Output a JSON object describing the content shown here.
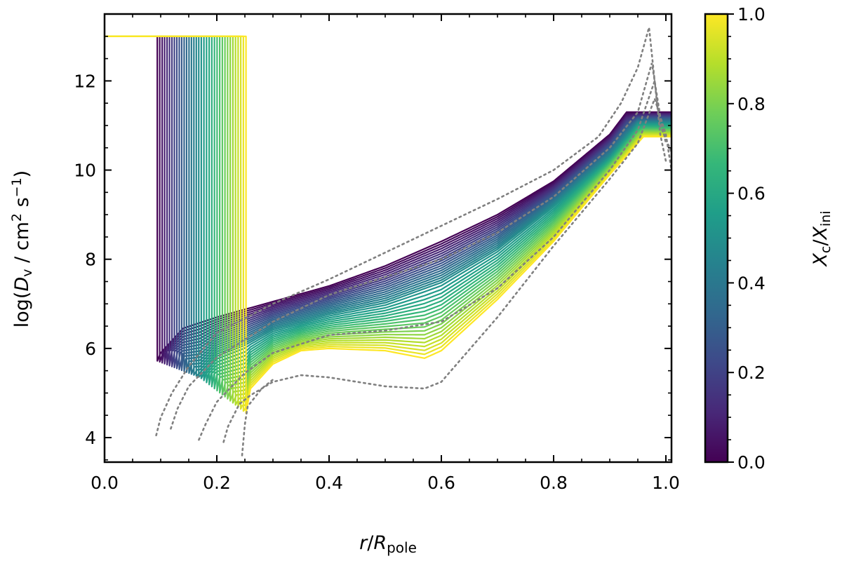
{
  "chart_data": {
    "type": "line",
    "xlabel": {
      "var": "r",
      "sep": "/",
      "var2": "R",
      "sub": "pole"
    },
    "ylabel": {
      "pre": "log(",
      "var": "D",
      "sub": "v",
      "mid": " / cm",
      "sup1": "2",
      "mid2": " s",
      "sup2": "−1",
      "post": ")"
    },
    "colorbar_label": {
      "var": "X",
      "sub": "c",
      "sep": "/",
      "var2": "X",
      "sub2": "ini"
    },
    "xlim": [
      0.0,
      1.01
    ],
    "ylim": [
      3.45,
      13.5
    ],
    "x_ticks": [
      "0.0",
      "0.2",
      "0.4",
      "0.6",
      "0.8",
      "1.0"
    ],
    "x_tick_values": [
      0.0,
      0.2,
      0.4,
      0.6,
      0.8,
      1.0
    ],
    "y_ticks": [
      "4",
      "6",
      "8",
      "10",
      "12"
    ],
    "y_tick_values": [
      4,
      6,
      8,
      10,
      12
    ],
    "colorbar_ticks": [
      "0.0",
      "0.2",
      "0.4",
      "0.6",
      "0.8",
      "1.0"
    ],
    "colorbar_tick_values": [
      0.0,
      0.2,
      0.4,
      0.6,
      0.8,
      1.0
    ],
    "colormap": "viridis",
    "colormap_stops": [
      "#440154",
      "#482878",
      "#3e4989",
      "#31688e",
      "#26828e",
      "#1f9e89",
      "#35b779",
      "#6ece58",
      "#b5de2b",
      "#fde725"
    ],
    "colorbar_range": [
      0.0,
      1.0
    ],
    "grid": false,
    "solid_series_count": 36,
    "solid_series_style": "colored by Xc/Xini, core boundary from r=0.094 (Xc/Xini=0) to r=0.252 (Xc/Xini=1)",
    "solid_series_examples": [
      {
        "xc_xini": 0.0,
        "color": "#440154",
        "points": [
          [
            0.0,
            13.0
          ],
          [
            0.094,
            13.0
          ],
          [
            0.094,
            5.72
          ],
          [
            0.1,
            5.9
          ],
          [
            0.14,
            6.45
          ],
          [
            0.2,
            6.7
          ],
          [
            0.3,
            7.05
          ],
          [
            0.4,
            7.4
          ],
          [
            0.5,
            7.85
          ],
          [
            0.6,
            8.4
          ],
          [
            0.7,
            9.0
          ],
          [
            0.8,
            9.75
          ],
          [
            0.9,
            10.8
          ],
          [
            0.93,
            11.3
          ],
          [
            1.01,
            11.3
          ]
        ]
      },
      {
        "xc_xini": 0.5,
        "color": "#21918c",
        "points": [
          [
            0.0,
            13.0
          ],
          [
            0.17,
            13.0
          ],
          [
            0.17,
            5.35
          ],
          [
            0.2,
            5.8
          ],
          [
            0.25,
            6.05
          ],
          [
            0.3,
            6.4
          ],
          [
            0.4,
            6.75
          ],
          [
            0.5,
            7.0
          ],
          [
            0.6,
            7.45
          ],
          [
            0.7,
            8.2
          ],
          [
            0.8,
            9.2
          ],
          [
            0.9,
            10.3
          ],
          [
            0.95,
            11.05
          ],
          [
            1.01,
            11.05
          ]
        ]
      },
      {
        "xc_xini": 1.0,
        "color": "#fde725",
        "points": [
          [
            0.0,
            13.0
          ],
          [
            0.252,
            13.0
          ],
          [
            0.252,
            4.55
          ],
          [
            0.26,
            5.1
          ],
          [
            0.3,
            5.65
          ],
          [
            0.35,
            5.95
          ],
          [
            0.4,
            6.0
          ],
          [
            0.5,
            5.95
          ],
          [
            0.57,
            5.78
          ],
          [
            0.6,
            5.95
          ],
          [
            0.7,
            7.1
          ],
          [
            0.8,
            8.4
          ],
          [
            0.9,
            9.9
          ],
          [
            0.96,
            10.75
          ],
          [
            1.01,
            10.75
          ]
        ]
      }
    ],
    "dotted_series_style": "gray dotted reference curves",
    "dotted_series": [
      {
        "color": "#808080",
        "points": [
          [
            0.092,
            4.05
          ],
          [
            0.1,
            4.45
          ],
          [
            0.12,
            5.0
          ],
          [
            0.15,
            5.6
          ],
          [
            0.2,
            6.35
          ],
          [
            0.3,
            7.0
          ],
          [
            0.4,
            7.55
          ],
          [
            0.5,
            8.15
          ],
          [
            0.6,
            8.75
          ],
          [
            0.7,
            9.35
          ],
          [
            0.8,
            10.0
          ],
          [
            0.88,
            10.75
          ],
          [
            0.92,
            11.5
          ],
          [
            0.95,
            12.3
          ],
          [
            0.97,
            13.2
          ],
          [
            0.98,
            12.0
          ],
          [
            0.99,
            10.8
          ],
          [
            1.0,
            10.2
          ]
        ]
      },
      {
        "color": "#808080",
        "points": [
          [
            0.118,
            4.2
          ],
          [
            0.13,
            4.65
          ],
          [
            0.15,
            5.15
          ],
          [
            0.2,
            5.8
          ],
          [
            0.3,
            6.6
          ],
          [
            0.4,
            7.2
          ],
          [
            0.5,
            7.6
          ],
          [
            0.6,
            8.0
          ],
          [
            0.7,
            8.6
          ],
          [
            0.8,
            9.4
          ],
          [
            0.9,
            10.5
          ],
          [
            0.95,
            11.3
          ],
          [
            0.975,
            12.4
          ],
          [
            0.99,
            11.2
          ],
          [
            1.0,
            10.6
          ]
        ]
      },
      {
        "color": "#808080",
        "points": [
          [
            0.168,
            3.95
          ],
          [
            0.18,
            4.3
          ],
          [
            0.2,
            4.8
          ],
          [
            0.25,
            5.45
          ],
          [
            0.3,
            5.9
          ],
          [
            0.4,
            6.3
          ],
          [
            0.5,
            6.4
          ],
          [
            0.6,
            6.6
          ],
          [
            0.7,
            7.35
          ],
          [
            0.8,
            8.5
          ],
          [
            0.9,
            10.0
          ],
          [
            0.95,
            10.9
          ],
          [
            0.98,
            12.0
          ],
          [
            0.99,
            11.0
          ],
          [
            1.01,
            10.4
          ]
        ]
      },
      {
        "color": "#808080",
        "points": [
          [
            0.212,
            3.9
          ],
          [
            0.22,
            4.25
          ],
          [
            0.24,
            4.75
          ],
          [
            0.26,
            4.95
          ],
          [
            0.3,
            5.25
          ],
          [
            0.35,
            5.4
          ],
          [
            0.4,
            5.35
          ],
          [
            0.5,
            5.15
          ],
          [
            0.57,
            5.1
          ],
          [
            0.6,
            5.25
          ],
          [
            0.7,
            6.7
          ],
          [
            0.8,
            8.3
          ],
          [
            0.9,
            9.8
          ],
          [
            0.95,
            10.6
          ],
          [
            0.98,
            11.6
          ],
          [
            1.0,
            10.8
          ],
          [
            1.01,
            10.0
          ]
        ]
      },
      {
        "color": "#808080",
        "points": [
          [
            0.245,
            3.6
          ],
          [
            0.25,
            4.3
          ],
          [
            0.255,
            4.7
          ],
          [
            0.28,
            5.1
          ],
          [
            0.3,
            5.3
          ]
        ]
      }
    ]
  }
}
